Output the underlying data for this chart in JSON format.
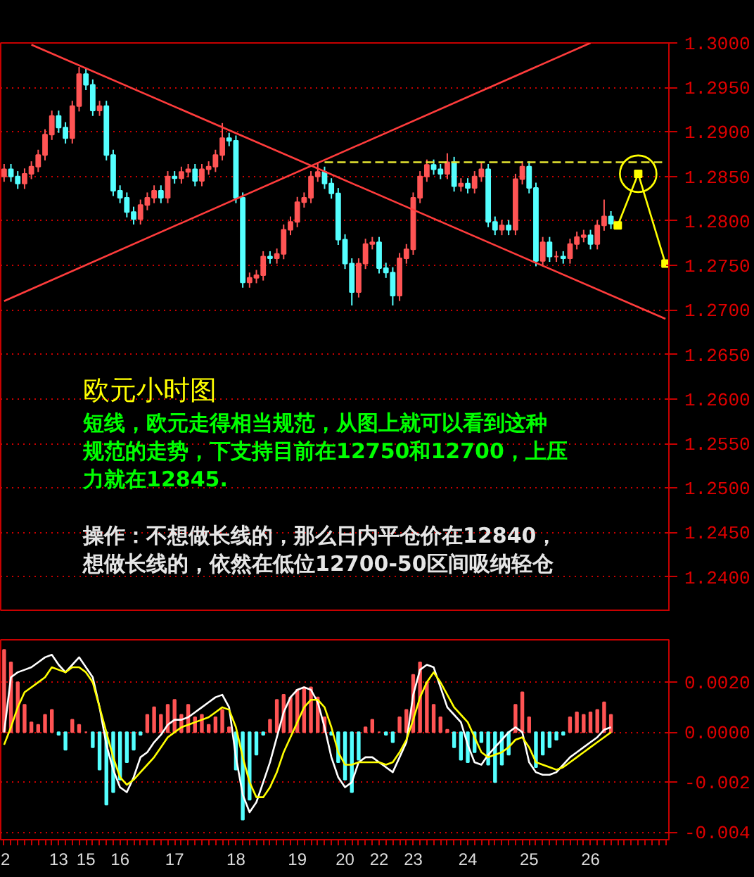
{
  "chart_data": [
    {
      "type": "candlestick",
      "title": "欧元小时图",
      "tick_labels": "y",
      "grid": "y",
      "annotations": [
        "短线，欧元走得相当规范，从图上就可以看到这种规范的走势，下支持目前在12750和12700，上压力就在12845.",
        "操作：不想做长线的，那么日内平仓价在12840，想做长线的，依然在低位12700-50区间吸纳轻仓"
      ],
      "categories": [
        "2",
        null,
        null,
        null,
        null,
        null,
        null,
        null,
        "13",
        null,
        null,
        null,
        "15",
        null,
        null,
        null,
        null,
        "16",
        null,
        null,
        null,
        null,
        null,
        null,
        null,
        "17",
        null,
        null,
        null,
        null,
        null,
        null,
        null,
        null,
        "18",
        null,
        null,
        null,
        null,
        null,
        null,
        null,
        null,
        "19",
        null,
        null,
        null,
        null,
        null,
        null,
        "20",
        null,
        null,
        null,
        null,
        "22",
        null,
        null,
        null,
        null,
        "23",
        null,
        null,
        null,
        null,
        null,
        null,
        null,
        "24",
        null,
        null,
        null,
        null,
        null,
        null,
        null,
        null,
        "25",
        null,
        null,
        null,
        null,
        null,
        null,
        null,
        null,
        "26",
        null,
        null,
        null,
        null,
        null,
        null,
        null,
        null,
        null,
        null,
        null
      ],
      "ylim": [
        1.2361,
        1.3
      ],
      "yticks": [
        {
          "value": 1.24,
          "label": "1.2400"
        },
        {
          "value": 1.245,
          "label": "1.2450"
        },
        {
          "value": 1.25,
          "label": "1.2500"
        },
        {
          "value": 1.255,
          "label": "1.2550"
        },
        {
          "value": 1.26,
          "label": "1.2600"
        },
        {
          "value": 1.265,
          "label": "1.2650"
        },
        {
          "value": 1.27,
          "label": "1.2700"
        },
        {
          "value": 1.275,
          "label": "1.2750"
        },
        {
          "value": 1.28,
          "label": "1.2800"
        },
        {
          "value": 1.285,
          "label": "1.2850"
        },
        {
          "value": 1.29,
          "label": "1.2900"
        },
        {
          "value": 1.295,
          "label": "1.2950"
        },
        {
          "value": 1.3,
          "label": "1.3000"
        }
      ],
      "ohlc": [
        [
          1.285,
          1.2864,
          1.2844,
          1.2858
        ],
        [
          1.2858,
          1.2864,
          1.2844,
          1.285
        ],
        [
          1.285,
          1.2856,
          1.2836,
          1.2842
        ],
        [
          1.2842,
          1.2859,
          1.2836,
          1.2853
        ],
        [
          1.2853,
          1.2867,
          1.2847,
          1.2861
        ],
        [
          1.2861,
          1.288,
          1.2855,
          1.2874
        ],
        [
          1.2874,
          1.2903,
          1.2868,
          1.2897
        ],
        [
          1.2897,
          1.2924,
          1.2891,
          1.2918
        ],
        [
          1.2918,
          1.2924,
          1.2899,
          1.2905
        ],
        [
          1.2905,
          1.2911,
          1.2887,
          1.2893
        ],
        [
          1.2893,
          1.2935,
          1.2887,
          1.2929
        ],
        [
          1.2929,
          1.2973,
          1.2923,
          1.2965
        ],
        [
          1.2965,
          1.2971,
          1.2947,
          1.2953
        ],
        [
          1.2953,
          1.2959,
          1.2918,
          1.2924
        ],
        [
          1.2924,
          1.2935,
          1.2918,
          1.2929
        ],
        [
          1.2929,
          1.2935,
          1.2868,
          1.2874
        ],
        [
          1.2874,
          1.288,
          1.2828,
          1.2834
        ],
        [
          1.2834,
          1.284,
          1.282,
          1.2826
        ],
        [
          1.2826,
          1.2832,
          1.2804,
          1.281
        ],
        [
          1.281,
          1.2816,
          1.2796,
          1.2802
        ],
        [
          1.2802,
          1.2824,
          1.2796,
          1.2818
        ],
        [
          1.2818,
          1.2832,
          1.2812,
          1.2826
        ],
        [
          1.2826,
          1.284,
          1.282,
          1.2834
        ],
        [
          1.2834,
          1.284,
          1.282,
          1.2826
        ],
        [
          1.2826,
          1.2856,
          1.282,
          1.285
        ],
        [
          1.285,
          1.2856,
          1.2842,
          1.2848
        ],
        [
          1.2848,
          1.2861,
          1.2842,
          1.2855
        ],
        [
          1.2855,
          1.2864,
          1.2849,
          1.2858
        ],
        [
          1.2858,
          1.2864,
          1.2839,
          1.2845
        ],
        [
          1.2845,
          1.2864,
          1.2839,
          1.2858
        ],
        [
          1.2858,
          1.2867,
          1.2852,
          1.2861
        ],
        [
          1.2861,
          1.288,
          1.2855,
          1.2874
        ],
        [
          1.2874,
          1.291,
          1.2868,
          1.2893
        ],
        [
          1.2893,
          1.2899,
          1.2884,
          1.289
        ],
        [
          1.289,
          1.2896,
          1.282,
          1.2826
        ],
        [
          1.2826,
          1.2832,
          1.2725,
          1.2731
        ],
        [
          1.2731,
          1.2742,
          1.2725,
          1.2736
        ],
        [
          1.2736,
          1.2745,
          1.273,
          1.2739
        ],
        [
          1.2739,
          1.2766,
          1.2733,
          1.276
        ],
        [
          1.276,
          1.2766,
          1.2752,
          1.2758
        ],
        [
          1.2758,
          1.2769,
          1.2752,
          1.2763
        ],
        [
          1.2763,
          1.2796,
          1.2757,
          1.279
        ],
        [
          1.279,
          1.2805,
          1.2784,
          1.2799
        ],
        [
          1.2799,
          1.2827,
          1.2793,
          1.2821
        ],
        [
          1.2821,
          1.2832,
          1.2815,
          1.2826
        ],
        [
          1.2826,
          1.2856,
          1.282,
          1.285
        ],
        [
          1.285,
          1.2866,
          1.2844,
          1.2855
        ],
        [
          1.2855,
          1.2861,
          1.2836,
          1.2842
        ],
        [
          1.2842,
          1.2848,
          1.2825,
          1.2831
        ],
        [
          1.2831,
          1.2837,
          1.2773,
          1.2779
        ],
        [
          1.2779,
          1.2785,
          1.2746,
          1.2752
        ],
        [
          1.2752,
          1.2758,
          1.2705,
          1.272
        ],
        [
          1.272,
          1.2758,
          1.2714,
          1.2752
        ],
        [
          1.2752,
          1.278,
          1.2746,
          1.2774
        ],
        [
          1.2774,
          1.2782,
          1.2768,
          1.2776
        ],
        [
          1.2776,
          1.2782,
          1.2741,
          1.2747
        ],
        [
          1.2747,
          1.2753,
          1.2736,
          1.2742
        ],
        [
          1.2742,
          1.2748,
          1.2705,
          1.2716
        ],
        [
          1.2716,
          1.2764,
          1.271,
          1.2758
        ],
        [
          1.2758,
          1.2774,
          1.2752,
          1.2768
        ],
        [
          1.2768,
          1.2832,
          1.2762,
          1.2826
        ],
        [
          1.2826,
          1.2856,
          1.282,
          1.285
        ],
        [
          1.285,
          1.2869,
          1.2844,
          1.2863
        ],
        [
          1.2863,
          1.2869,
          1.2852,
          1.2858
        ],
        [
          1.2858,
          1.2864,
          1.2847,
          1.2853
        ],
        [
          1.2853,
          1.2876,
          1.2847,
          1.2866
        ],
        [
          1.2866,
          1.2872,
          1.2833,
          1.2839
        ],
        [
          1.2839,
          1.2848,
          1.2833,
          1.2842
        ],
        [
          1.2842,
          1.2848,
          1.2831,
          1.2837
        ],
        [
          1.2837,
          1.2856,
          1.2831,
          1.285
        ],
        [
          1.285,
          1.2866,
          1.2844,
          1.2858
        ],
        [
          1.2858,
          1.2864,
          1.2793,
          1.2799
        ],
        [
          1.2799,
          1.2805,
          1.2784,
          1.279
        ],
        [
          1.279,
          1.2801,
          1.2784,
          1.2795
        ],
        [
          1.2795,
          1.2801,
          1.2784,
          1.279
        ],
        [
          1.279,
          1.2853,
          1.2784,
          1.2847
        ],
        [
          1.2847,
          1.2867,
          1.2841,
          1.2861
        ],
        [
          1.2861,
          1.2867,
          1.2831,
          1.2837
        ],
        [
          1.2837,
          1.2843,
          1.2749,
          1.2755
        ],
        [
          1.2755,
          1.2782,
          1.2749,
          1.2776
        ],
        [
          1.2776,
          1.2782,
          1.2754,
          1.276
        ],
        [
          1.276,
          1.2766,
          1.2754,
          1.276
        ],
        [
          1.276,
          1.2766,
          1.2752,
          1.2758
        ],
        [
          1.2758,
          1.278,
          1.2752,
          1.2774
        ],
        [
          1.2774,
          1.2788,
          1.2768,
          1.2782
        ],
        [
          1.2782,
          1.279,
          1.2776,
          1.2784
        ],
        [
          1.2784,
          1.279,
          1.2768,
          1.2774
        ],
        [
          1.2774,
          1.2801,
          1.2768,
          1.2795
        ],
        [
          1.2795,
          1.2824,
          1.2789,
          1.2805
        ],
        [
          1.2805,
          1.2811,
          1.2791,
          1.2797
        ],
        null,
        null,
        null,
        null,
        null,
        null,
        null,
        null
      ],
      "colors": [
        "#ff5454",
        "#54ffff",
        "#54ffff",
        "#ff5454",
        "#ff5454",
        "#ff5454",
        "#ff5454",
        "#ff5454",
        "#54ffff",
        "#54ffff",
        "#ff5454",
        "#ff5454",
        "#54ffff",
        "#54ffff",
        "#ff5454",
        "#54ffff",
        "#54ffff",
        "#54ffff",
        "#54ffff",
        "#54ffff",
        "#ff5454",
        "#ff5454",
        "#ff5454",
        "#54ffff",
        "#ff5454",
        "#54ffff",
        "#ff5454",
        "#ff5454",
        "#54ffff",
        "#ff5454",
        "#ff5454",
        "#ff5454",
        "#ff5454",
        "#54ffff",
        "#54ffff",
        "#54ffff",
        "#ff5454",
        "#ff5454",
        "#ff5454",
        "#54ffff",
        "#ff5454",
        "#ff5454",
        "#ff5454",
        "#ff5454",
        "#ff5454",
        "#ff5454",
        "#ff5454",
        "#54ffff",
        "#54ffff",
        "#54ffff",
        "#54ffff",
        "#54ffff",
        "#ff5454",
        "#ff5454",
        "#ff5454",
        "#54ffff",
        "#54ffff",
        "#54ffff",
        "#ff5454",
        "#ff5454",
        "#ff5454",
        "#ff5454",
        "#ff5454",
        "#54ffff",
        "#54ffff",
        "#ff5454",
        "#54ffff",
        "#ff5454",
        "#54ffff",
        "#ff5454",
        "#ff5454",
        "#54ffff",
        "#54ffff",
        "#ff5454",
        "#54ffff",
        "#ff5454",
        "#ff5454",
        "#54ffff",
        "#54ffff",
        "#ff5454",
        "#54ffff",
        "#ff5454",
        "#54ffff",
        "#ff5454",
        "#ff5454",
        "#ff5454",
        "#54ffff",
        "#ff5454",
        "#ff5454",
        "#54ffff",
        null,
        null,
        null,
        null,
        null,
        null,
        null,
        null
      ],
      "series": [
        {
          "type": "line",
          "color": "#ff3c3c",
          "values": [
            null,
            null,
            null,
            null,
            1.2998,
            null,
            null,
            null,
            null,
            null,
            null,
            null,
            null,
            null,
            null,
            null,
            null,
            null,
            null,
            null,
            null,
            null,
            null,
            null,
            null,
            null,
            null,
            null,
            null,
            null,
            null,
            null,
            null,
            null,
            null,
            null,
            null,
            null,
            null,
            null,
            null,
            null,
            null,
            null,
            null,
            null,
            null,
            null,
            null,
            null,
            null,
            null,
            null,
            null,
            null,
            null,
            null,
            null,
            null,
            null,
            null,
            null,
            null,
            null,
            null,
            null,
            null,
            null,
            null,
            null,
            null,
            null,
            null,
            null,
            null,
            null,
            null,
            null,
            null,
            null,
            null,
            null,
            null,
            null,
            null,
            null,
            null,
            null,
            null,
            null,
            null,
            null,
            null,
            null,
            null,
            null,
            null,
            1.269
          ]
        },
        {
          "type": "line",
          "color": "#ff3c3c",
          "values": [
            1.271,
            null,
            null,
            null,
            null,
            null,
            null,
            null,
            null,
            null,
            null,
            null,
            null,
            null,
            null,
            null,
            null,
            null,
            null,
            null,
            null,
            null,
            null,
            null,
            null,
            null,
            null,
            null,
            null,
            null,
            null,
            null,
            null,
            null,
            null,
            null,
            null,
            null,
            null,
            null,
            null,
            null,
            null,
            null,
            null,
            null,
            null,
            null,
            null,
            null,
            null,
            null,
            null,
            null,
            null,
            null,
            null,
            null,
            null,
            null,
            null,
            null,
            null,
            null,
            null,
            null,
            null,
            null,
            null,
            null,
            null,
            null,
            null,
            null,
            null,
            null,
            null,
            null,
            null,
            null,
            null,
            null,
            null,
            null,
            null,
            null,
            1.3,
            null,
            null,
            null,
            null,
            null,
            null,
            null,
            null,
            null,
            null,
            null
          ]
        },
        {
          "type": "line",
          "color": "#e6e632",
          "line_style": "dashed",
          "values": [
            null,
            null,
            null,
            null,
            null,
            null,
            null,
            null,
            null,
            null,
            null,
            null,
            null,
            null,
            null,
            null,
            null,
            null,
            null,
            null,
            null,
            null,
            null,
            null,
            null,
            null,
            null,
            null,
            null,
            null,
            null,
            null,
            null,
            null,
            null,
            null,
            null,
            null,
            null,
            null,
            null,
            null,
            null,
            null,
            null,
            null,
            null,
            1.2866,
            null,
            null,
            null,
            null,
            null,
            null,
            null,
            null,
            null,
            null,
            null,
            null,
            null,
            null,
            null,
            null,
            null,
            null,
            null,
            null,
            null,
            null,
            null,
            null,
            null,
            null,
            null,
            null,
            null,
            null,
            null,
            null,
            null,
            null,
            null,
            null,
            null,
            null,
            null,
            null,
            null,
            null,
            null,
            null,
            null,
            null,
            null,
            null,
            null,
            1.2866
          ]
        },
        {
          "type": "line",
          "color": "#ffff00",
          "marker": "square",
          "values": [
            null,
            null,
            null,
            null,
            null,
            null,
            null,
            null,
            null,
            null,
            null,
            null,
            null,
            null,
            null,
            null,
            null,
            null,
            null,
            null,
            null,
            null,
            null,
            null,
            null,
            null,
            null,
            null,
            null,
            null,
            null,
            null,
            null,
            null,
            null,
            null,
            null,
            null,
            null,
            null,
            null,
            null,
            null,
            null,
            null,
            null,
            null,
            null,
            null,
            null,
            null,
            null,
            null,
            null,
            null,
            null,
            null,
            null,
            null,
            null,
            null,
            null,
            null,
            null,
            null,
            null,
            null,
            null,
            null,
            null,
            null,
            null,
            null,
            null,
            null,
            null,
            null,
            null,
            null,
            null,
            null,
            null,
            null,
            null,
            null,
            null,
            null,
            null,
            null,
            null,
            1.2795,
            null,
            null,
            1.2853,
            null,
            null,
            null,
            1.2752
          ]
        }
      ]
    },
    {
      "type": "bar",
      "grid": "y",
      "categories": [
        "2",
        null,
        null,
        null,
        null,
        null,
        null,
        null,
        "13",
        null,
        null,
        null,
        "15",
        null,
        null,
        null,
        null,
        "16",
        null,
        null,
        null,
        null,
        null,
        null,
        null,
        "17",
        null,
        null,
        null,
        null,
        null,
        null,
        null,
        null,
        "18",
        null,
        null,
        null,
        null,
        null,
        null,
        null,
        null,
        "19",
        null,
        null,
        null,
        null,
        null,
        null,
        "20",
        null,
        null,
        null,
        null,
        "22",
        null,
        null,
        null,
        null,
        "23",
        null,
        null,
        null,
        null,
        null,
        null,
        null,
        "24",
        null,
        null,
        null,
        null,
        null,
        null,
        null,
        null,
        "25",
        null,
        null,
        null,
        null,
        null,
        null,
        null,
        null,
        "26",
        null,
        null,
        null,
        null,
        null,
        null,
        null,
        null,
        null,
        null,
        null
      ],
      "ylim": [
        -0.0043,
        0.0037
      ],
      "yticks": [
        {
          "value": -0.004,
          "label": "-0.004"
        },
        {
          "value": -0.002,
          "label": "-0.002"
        },
        {
          "value": 0,
          "label": "0.0000"
        },
        {
          "value": 0.002,
          "label": "0.0020"
        }
      ],
      "series": [
        {
          "type": "bar",
          "values": [
            0.0033,
            0.0028,
            0.002,
            0.0011,
            0.0004,
            0.0003,
            0.0007,
            0.0009,
            -0.0001,
            -0.0007,
            0.0005,
            0.0003,
            0.0,
            -0.0006,
            -0.0015,
            -0.0029,
            -0.0024,
            -0.0019,
            -0.0012,
            -0.0007,
            -0.0001,
            0.0007,
            0.001,
            0.0007,
            0.0011,
            0.0013,
            0.0007,
            0.0011,
            0.0006,
            0.0007,
            0.0003,
            0.0006,
            0.0009,
            0.0002,
            -0.0015,
            -0.0035,
            -0.0027,
            -0.0009,
            -0.0001,
            0.0005,
            0.0013,
            0.0015,
            0.0014,
            0.0017,
            0.0018,
            0.0018,
            0.0014,
            0.0006,
            -0.0001,
            -0.0012,
            -0.0019,
            -0.0024,
            -0.0011,
            0.0002,
            0.0005,
            0.0,
            -0.0001,
            -0.0004,
            0.0006,
            0.0009,
            0.0023,
            0.0028,
            0.002,
            0.0011,
            0.0006,
            0.0001,
            -0.0006,
            -0.0011,
            -0.0012,
            -0.0008,
            -0.0004,
            -0.0013,
            -0.002,
            -0.0013,
            -0.0009,
            0.0011,
            0.0016,
            0.0006,
            -0.0014,
            -0.0009,
            -0.0006,
            -0.0003,
            -0.0001,
            0.0006,
            0.0008,
            0.0007,
            0.0008,
            0.0009,
            0.0012,
            0.0007,
            null,
            null,
            null,
            null,
            null,
            null,
            null,
            null
          ],
          "colors": [
            "#ff5454",
            "#ff5454",
            "#ff5454",
            "#ff5454",
            "#ff5454",
            "#ff5454",
            "#ff5454",
            "#ff5454",
            "#54ffff",
            "#54ffff",
            "#ff5454",
            "#ff5454",
            "#ff5454",
            "#54ffff",
            "#54ffff",
            "#54ffff",
            "#54ffff",
            "#54ffff",
            "#54ffff",
            "#54ffff",
            "#54ffff",
            "#ff5454",
            "#ff5454",
            "#ff5454",
            "#ff5454",
            "#ff5454",
            "#ff5454",
            "#ff5454",
            "#ff5454",
            "#ff5454",
            "#ff5454",
            "#ff5454",
            "#ff5454",
            "#ff5454",
            "#54ffff",
            "#54ffff",
            "#54ffff",
            "#54ffff",
            "#54ffff",
            "#ff5454",
            "#ff5454",
            "#ff5454",
            "#ff5454",
            "#ff5454",
            "#ff5454",
            "#ff5454",
            "#ff5454",
            "#ff5454",
            "#54ffff",
            "#54ffff",
            "#54ffff",
            "#54ffff",
            "#54ffff",
            "#ff5454",
            "#ff5454",
            "#ff5454",
            "#54ffff",
            "#54ffff",
            "#ff5454",
            "#ff5454",
            "#ff5454",
            "#ff5454",
            "#ff5454",
            "#ff5454",
            "#ff5454",
            "#ff5454",
            "#54ffff",
            "#54ffff",
            "#54ffff",
            "#54ffff",
            "#54ffff",
            "#54ffff",
            "#54ffff",
            "#54ffff",
            "#54ffff",
            "#ff5454",
            "#ff5454",
            "#ff5454",
            "#54ffff",
            "#54ffff",
            "#54ffff",
            "#54ffff",
            "#54ffff",
            "#ff5454",
            "#ff5454",
            "#ff5454",
            "#ff5454",
            "#ff5454",
            "#ff5454",
            "#ff5454",
            null,
            null,
            null,
            null,
            null,
            null,
            null,
            null
          ]
        },
        {
          "type": "line",
          "color": "#ffffff",
          "values": [
            0.0,
            0.0022,
            0.0024,
            0.0025,
            0.0026,
            0.0028,
            0.003,
            0.0031,
            0.0027,
            0.0024,
            0.0027,
            0.003,
            0.0026,
            0.0022,
            0.001,
            -0.0005,
            -0.0015,
            -0.0022,
            -0.0024,
            -0.0018,
            -0.001,
            -0.0008,
            -0.0004,
            -0.0001,
            0.0003,
            0.0005,
            0.0005,
            0.0006,
            0.0008,
            0.001,
            0.0012,
            0.0014,
            0.0015,
            0.001,
            -0.001,
            -0.0025,
            -0.0032,
            -0.0028,
            -0.002,
            -0.0012,
            -0.0002,
            0.0008,
            0.0014,
            0.0017,
            0.0018,
            0.0017,
            0.0012,
            0.0002,
            -0.001,
            -0.0018,
            -0.0022,
            -0.002,
            -0.0012,
            -0.001,
            -0.001,
            -0.0012,
            -0.0014,
            -0.0016,
            -0.001,
            -0.0004,
            0.0015,
            0.0025,
            0.0027,
            0.0026,
            0.0018,
            0.001,
            0.0007,
            0.0004,
            -0.0005,
            -0.0012,
            -0.0013,
            -0.0009,
            -0.0006,
            -0.0003,
            0.0,
            0.0002,
            0.0,
            -0.0012,
            -0.0016,
            -0.0017,
            -0.0017,
            -0.0016,
            -0.0013,
            -0.001,
            -0.0008,
            -0.0006,
            -0.0004,
            -0.0002,
            0.0001,
            0.0002,
            null,
            null,
            null,
            null,
            null,
            null,
            null,
            null
          ]
        },
        {
          "type": "line",
          "color": "#ffff00",
          "values": [
            -0.0005,
            0.0002,
            0.001,
            0.0016,
            0.0018,
            0.002,
            0.0022,
            0.0026,
            0.0025,
            0.0024,
            0.0026,
            0.0026,
            0.0024,
            0.002,
            0.001,
            0.0,
            -0.001,
            -0.0018,
            -0.0021,
            -0.0019,
            -0.0016,
            -0.0013,
            -0.001,
            -0.0006,
            -0.0002,
            0.0,
            0.0002,
            0.0003,
            0.0004,
            0.0005,
            0.0006,
            0.0008,
            0.001,
            0.0009,
            0.0002,
            -0.001,
            -0.002,
            -0.0026,
            -0.0026,
            -0.0022,
            -0.0016,
            -0.0008,
            -0.0002,
            0.0004,
            0.001,
            0.0013,
            0.0013,
            0.001,
            0.0002,
            -0.0008,
            -0.0013,
            -0.0013,
            -0.0012,
            -0.0012,
            -0.0012,
            -0.0012,
            -0.0013,
            -0.0012,
            -0.0008,
            -0.0003,
            0.0005,
            0.0014,
            0.002,
            0.0024,
            0.002,
            0.0015,
            0.001,
            0.0007,
            0.0004,
            -0.0002,
            -0.0008,
            -0.001,
            -0.0009,
            -0.0008,
            -0.0006,
            -0.0003,
            -0.0002,
            -0.0006,
            -0.0012,
            -0.0013,
            -0.0014,
            -0.0015,
            -0.0014,
            -0.0012,
            -0.001,
            -0.0008,
            -0.0006,
            -0.0004,
            -0.0002,
            0.0,
            null,
            null,
            null,
            null,
            null,
            null,
            null,
            null
          ]
        }
      ]
    }
  ]
}
